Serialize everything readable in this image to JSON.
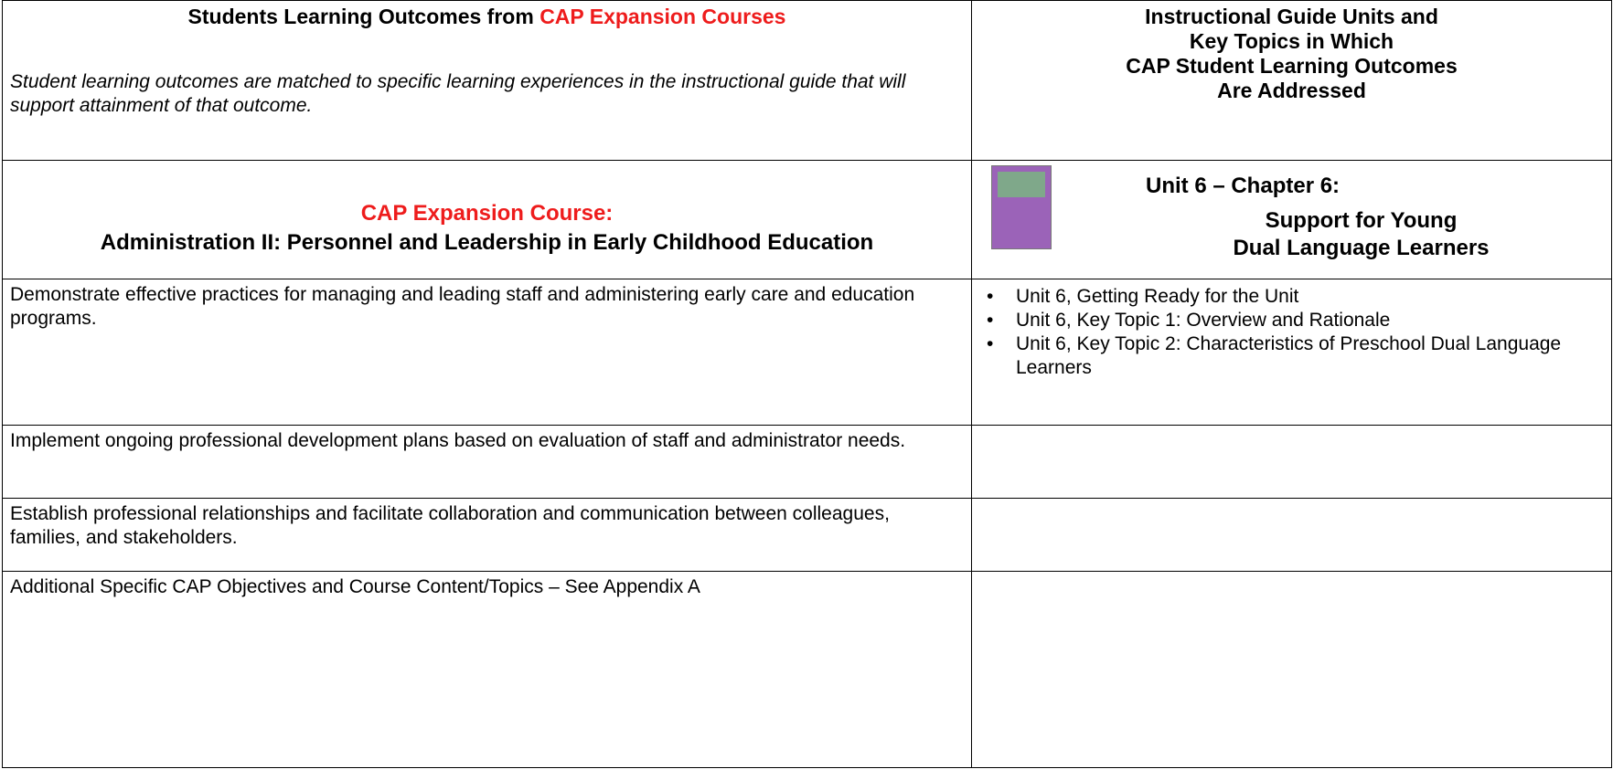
{
  "header": {
    "left_title": {
      "plain": "Students Learning Outcomes from",
      "highlight": "CAP Expansion Courses"
    },
    "left_note": "Student learning outcomes are matched to specific learning experiences in the instructional guide that will support attainment of that outcome.",
    "right_title_lines": [
      "Instructional Guide Units and",
      "Key Topics in Which",
      "CAP Student Learning Outcomes",
      "Are Addressed"
    ]
  },
  "course": {
    "label": "CAP Expansion Course:",
    "name": "Administration II: Personnel and Leadership in Early Childhood Education"
  },
  "unit": {
    "heading": "Unit 6 – Chapter 6:",
    "subtitle_lines": [
      "Support for Young",
      "Dual Language Learners"
    ]
  },
  "table": {
    "rows": [
      {
        "outcome": "Demonstrate effective practices for managing and leading staff and administering early care and education programs.",
        "topics": [
          "Unit 6, Getting Ready for the Unit",
          "Unit 6, Key Topic 1: Overview and Rationale",
          "Unit 6, Key Topic 2: Characteristics of Preschool Dual Language Learners"
        ]
      },
      {
        "outcome": "Implement ongoing professional development plans based on evaluation of staff and administrator needs.",
        "topics": []
      },
      {
        "outcome": "Establish professional relationships and facilitate collaboration and communication between colleagues, families, and stakeholders.",
        "topics": []
      },
      {
        "outcome": "Additional Specific CAP Objectives and Course Content/Topics – See Appendix A",
        "topics": []
      }
    ]
  }
}
